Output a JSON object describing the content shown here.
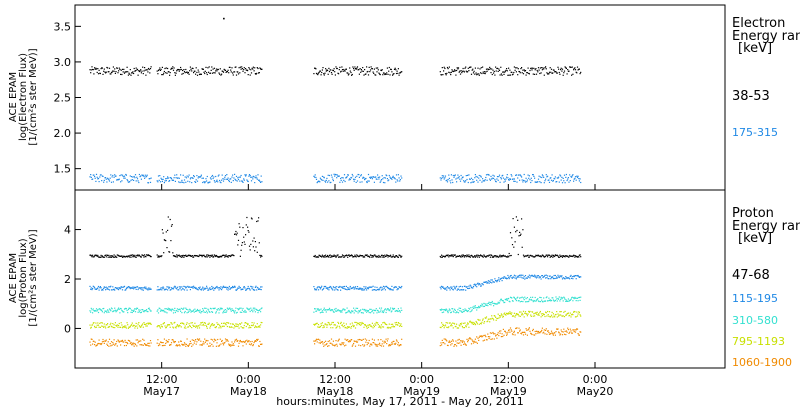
{
  "chart_data": [
    {
      "type": "scatter",
      "panel": "electron",
      "ylabel_lines": [
        "ACE EPAM",
        "log(Electron Flux)",
        "[1/(cm²s ster MeV)]"
      ],
      "yticks": [
        "1.5",
        "2.0",
        "2.5",
        "3.0",
        "3.5"
      ],
      "ylim": [
        1.2,
        3.8
      ],
      "legend_title": [
        "Electron",
        "Energy ran",
        "[keV]"
      ],
      "legend_placement": "right",
      "series": [
        {
          "name": "38-53",
          "color": "#000000",
          "level": 2.88,
          "spread": 0.06
        },
        {
          "name": "175-315",
          "color": "#1e88e5",
          "level": 1.37,
          "spread": 0.06
        }
      ],
      "outliers": [
        {
          "x": 20.5,
          "y": 3.62
        }
      ]
    },
    {
      "type": "scatter",
      "panel": "proton",
      "ylabel_lines": [
        "ACE EPAM",
        "log(Proton Flux)",
        "[1/(cm²s ster MeV)]"
      ],
      "yticks": [
        "0",
        "2",
        "4"
      ],
      "ylim": [
        -1.6,
        5.6
      ],
      "legend_title": [
        "Proton",
        "Energy ran",
        "[keV]"
      ],
      "legend_placement": "right",
      "series": [
        {
          "name": "47-68",
          "color": "#000000",
          "level": 2.95,
          "spread": 0.05
        },
        {
          "name": "115-195",
          "color": "#1e88e5",
          "level": 1.65,
          "spread": 0.08
        },
        {
          "name": "310-580",
          "color": "#33e0d0",
          "level": 0.75,
          "spread": 0.1
        },
        {
          "name": "795-1193",
          "color": "#c8e000",
          "level": 0.15,
          "spread": 0.12
        },
        {
          "name": "1060-1900",
          "color": "#f08a00",
          "level": -0.55,
          "spread": 0.15
        }
      ]
    }
  ],
  "x_axis": {
    "title": "hours:minutes, May 17, 2011 - May 20, 2011",
    "xlim_hours": [
      0,
      90
    ],
    "ticks": [
      {
        "hours": 12,
        "label": "12:00",
        "date": "May17"
      },
      {
        "hours": 24,
        "label": "0:00",
        "date": "May18"
      },
      {
        "hours": 36,
        "label": "12:00",
        "date": "May18"
      },
      {
        "hours": 48,
        "label": "0:00",
        "date": "May19"
      },
      {
        "hours": 60,
        "label": "12:00",
        "date": "May19"
      },
      {
        "hours": 72,
        "label": "0:00",
        "date": "May20"
      }
    ],
    "data_segments_hours": [
      [
        2.0,
        10.5
      ],
      [
        11.3,
        25.8
      ],
      [
        33.0,
        45.2
      ],
      [
        50.5,
        70.0
      ]
    ]
  }
}
